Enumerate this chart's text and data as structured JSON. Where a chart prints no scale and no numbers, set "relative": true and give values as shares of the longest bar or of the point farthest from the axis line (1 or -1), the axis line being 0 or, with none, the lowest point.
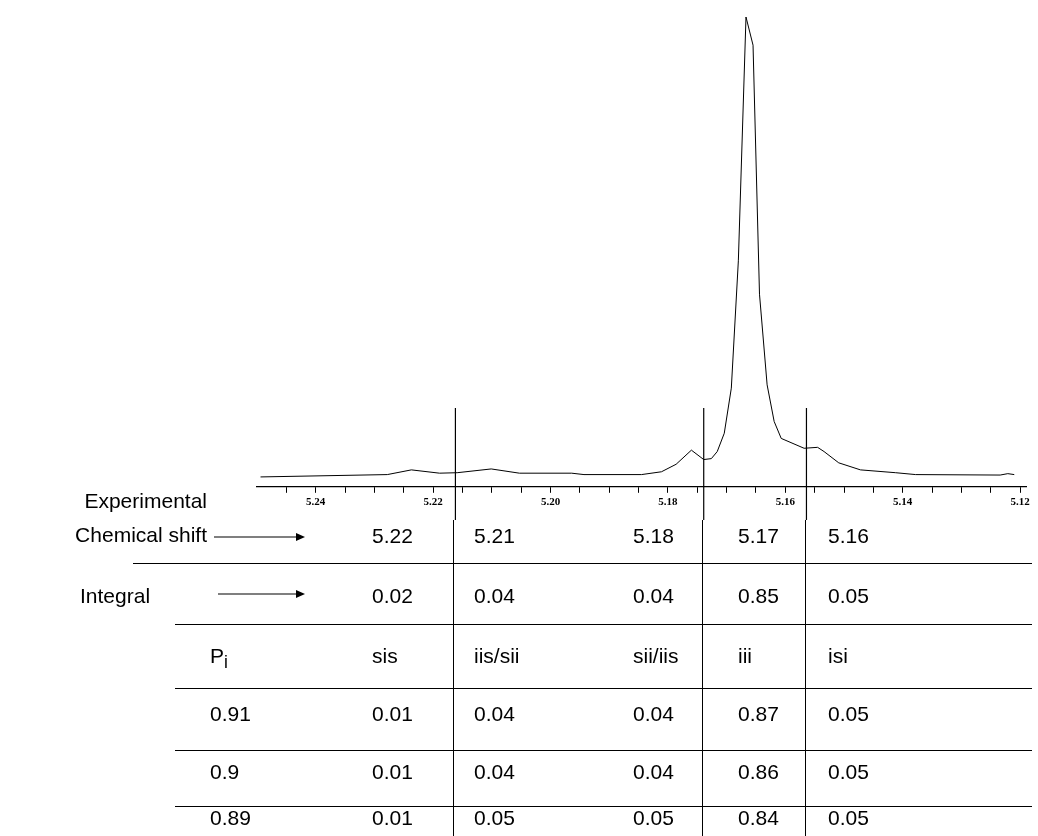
{
  "chart_data": {
    "type": "line",
    "relative": true,
    "marker": "none",
    "xlim": [
      5.25,
      5.119
    ],
    "xticks": [
      {
        "value": 5.245,
        "label": null
      },
      5.24,
      {
        "value": 5.235,
        "label": null
      },
      {
        "value": 5.23,
        "label": null
      },
      {
        "value": 5.225,
        "label": null
      },
      5.22,
      {
        "value": 5.215,
        "label": null
      },
      {
        "value": 5.21,
        "label": null
      },
      {
        "value": 5.205,
        "label": null
      },
      {
        "value": 5.2,
        "label": "5.20"
      },
      {
        "value": 5.195,
        "label": null
      },
      {
        "value": 5.19,
        "label": null
      },
      {
        "value": 5.185,
        "label": null
      },
      5.18,
      {
        "value": 5.175,
        "label": null
      },
      {
        "value": 5.17,
        "label": null
      },
      {
        "value": 5.165,
        "label": null
      },
      5.16,
      {
        "value": 5.155,
        "label": null
      },
      {
        "value": 5.15,
        "label": null
      },
      {
        "value": 5.145,
        "label": null
      },
      5.14,
      {
        "value": 5.135,
        "label": null
      },
      {
        "value": 5.13,
        "label": null
      },
      {
        "value": 5.125,
        "label": null
      },
      5.12
    ],
    "series": [
      {
        "color": "#000000",
        "x": [
          5.2494,
          5.2278,
          5.2237,
          5.2189,
          5.2159,
          5.2101,
          5.2053,
          5.1964,
          5.1943,
          5.1845,
          5.1811,
          5.1786,
          5.176,
          5.1739,
          5.1726,
          5.1716,
          5.1704,
          5.1692,
          5.168,
          5.1667,
          5.1655,
          5.1644,
          5.1631,
          5.1619,
          5.1607,
          5.1568,
          5.1545,
          5.1534,
          5.1509,
          5.1472,
          5.1412,
          5.1378,
          5.1234,
          5.1221,
          5.121
        ],
        "values": [
          0.021,
          0.026,
          0.036,
          0.029,
          0.03,
          0.038,
          0.029,
          0.029,
          0.026,
          0.026,
          0.032,
          0.048,
          0.078,
          0.058,
          0.06,
          0.075,
          0.114,
          0.21,
          0.481,
          1.0,
          0.94,
          0.41,
          0.217,
          0.139,
          0.103,
          0.082,
          0.084,
          0.075,
          0.051,
          0.036,
          0.03,
          0.026,
          0.025,
          0.028,
          0.026
        ]
      }
    ],
    "ref_lines": [
      {
        "axis": "x",
        "value": 5.2162
      },
      {
        "axis": "x",
        "value": 5.1739
      },
      {
        "axis": "x",
        "value": 5.1564
      }
    ],
    "annotations": [
      "Experimental Chemical shift",
      "5.22",
      "5.21",
      "5.18",
      "5.17",
      "5.16",
      "Integral",
      "0.02",
      "0.04",
      "0.04",
      "0.85",
      "0.05",
      "P$_{i}$",
      "sis",
      "iis/sii",
      "sii/iis",
      "iii",
      "isi",
      "0.91",
      "0.01",
      "0.04",
      "0.04",
      "0.87",
      "0.05",
      "0.9",
      "0.01",
      "0.04",
      "0.04",
      "0.86",
      "0.05",
      "0.89",
      "0.01",
      "0.05",
      "0.05",
      "0.84",
      "0.05"
    ]
  }
}
